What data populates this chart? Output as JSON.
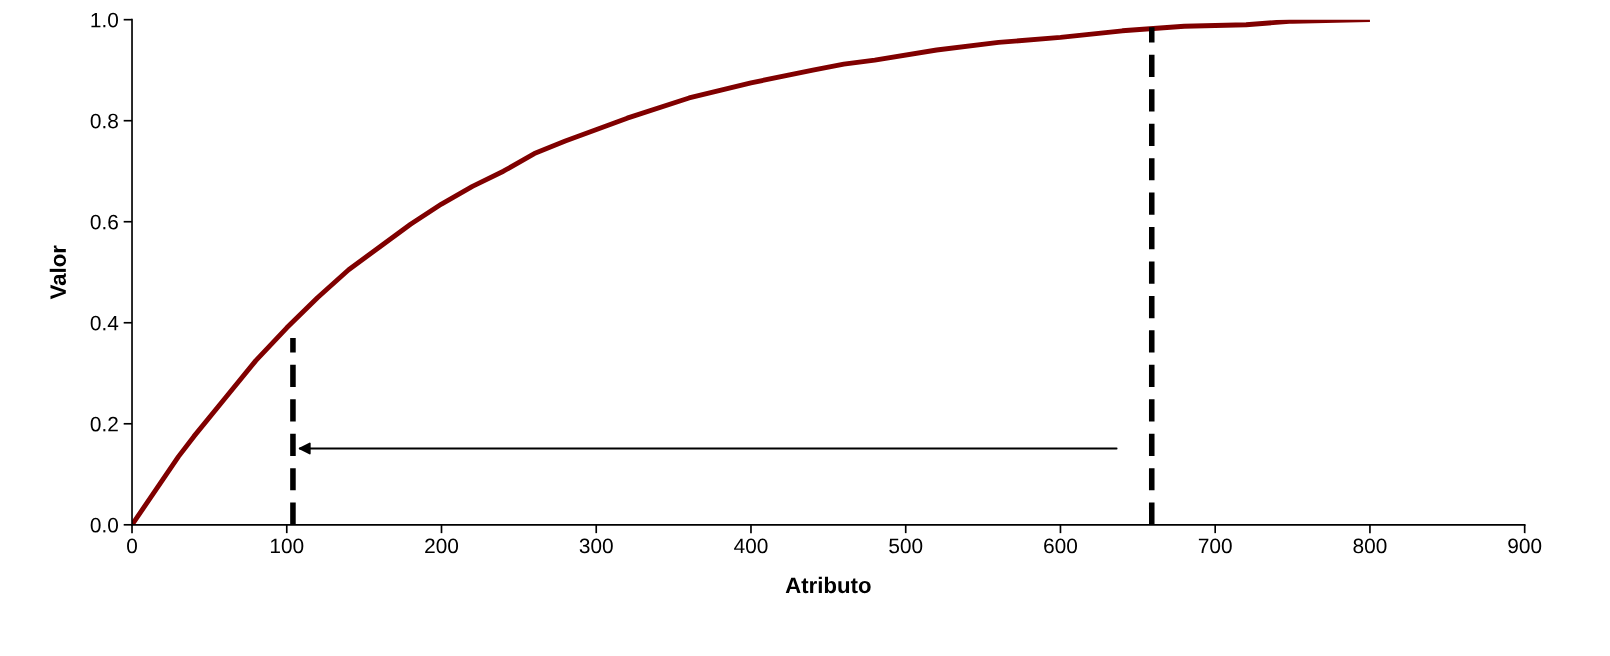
{
  "chart_data": {
    "type": "line",
    "xlabel": "Atributo",
    "ylabel": "Valor",
    "xlim": [
      0,
      900
    ],
    "xticks": [
      0,
      100,
      200,
      300,
      400,
      500,
      600,
      700,
      800,
      900
    ],
    "ylim": [
      0,
      1.0
    ],
    "yticks": [
      {
        "value": 0,
        "label": "0.0"
      },
      {
        "value": 0.2,
        "label": "0.2"
      },
      {
        "value": 0.4,
        "label": "0.4"
      },
      {
        "value": 0.6,
        "label": "0.6"
      },
      {
        "value": 0.8,
        "label": "0.8"
      },
      {
        "value": 1.0,
        "label": "1.0"
      }
    ],
    "grid": false,
    "marker": "none",
    "series": [
      {
        "color": "#800000",
        "line_style": "solid",
        "x": [
          0,
          30,
          40,
          60,
          80,
          100,
          120,
          140,
          160,
          180,
          200,
          220,
          240,
          260,
          280,
          320,
          360,
          400,
          440,
          460,
          480,
          520,
          560,
          600,
          640,
          680,
          720,
          750,
          800
        ],
        "values": [
          0,
          0.135,
          0.175,
          0.25,
          0.325,
          0.39,
          0.45,
          0.505,
          0.55,
          0.595,
          0.635,
          0.67,
          0.7,
          0.735,
          0.76,
          0.805,
          0.845,
          0.875,
          0.9,
          0.912,
          0.92,
          0.94,
          0.955,
          0.965,
          0.978,
          0.987,
          0.99,
          0.997,
          1.0
        ]
      },
      {
        "color": "#000000",
        "line_style": "dashed",
        "x": [
          104,
          104
        ],
        "values": [
          0,
          0.37
        ]
      },
      {
        "color": "#000000",
        "line_style": "dashed",
        "x": [
          659,
          659
        ],
        "values": [
          0,
          0.985
        ]
      }
    ]
  }
}
